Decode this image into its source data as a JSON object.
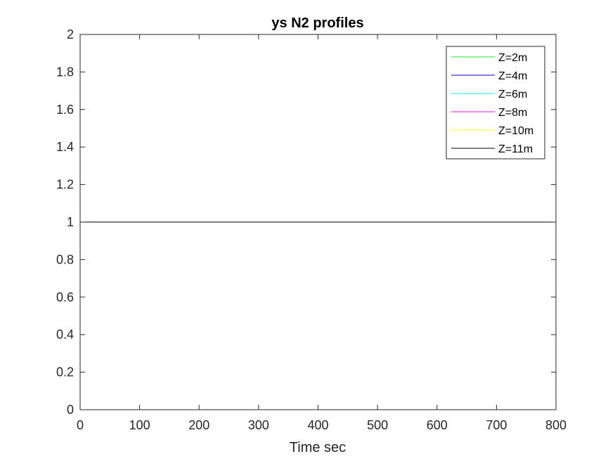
{
  "chart_data": {
    "type": "line",
    "title": "ys N2 profiles",
    "xlabel": "Time sec",
    "ylabel": "",
    "xlim": [
      0,
      800
    ],
    "ylim": [
      0,
      2
    ],
    "xticks": [
      0,
      100,
      200,
      300,
      400,
      500,
      600,
      700,
      800
    ],
    "yticks": [
      0,
      0.2,
      0.4,
      0.6,
      0.8,
      1,
      1.2,
      1.4,
      1.6,
      1.8,
      2
    ],
    "xtick_labels": [
      "0",
      "100",
      "200",
      "300",
      "400",
      "500",
      "600",
      "700",
      "800"
    ],
    "ytick_labels": [
      "0",
      "0.2",
      "0.4",
      "0.6",
      "0.8",
      "1",
      "1.2",
      "1.4",
      "1.6",
      "1.8",
      "2"
    ],
    "grid": false,
    "legend_position": "top-right",
    "series": [
      {
        "name": "Z=2m",
        "color": "#00ff00",
        "x": [
          0,
          800
        ],
        "y": [
          1,
          1
        ]
      },
      {
        "name": "Z=4m",
        "color": "#0000ff",
        "x": [
          0,
          800
        ],
        "y": [
          1,
          1
        ]
      },
      {
        "name": "Z=6m",
        "color": "#00ffff",
        "x": [
          0,
          800
        ],
        "y": [
          1,
          1
        ]
      },
      {
        "name": "Z=8m",
        "color": "#ff00ff",
        "x": [
          0,
          800
        ],
        "y": [
          1,
          1
        ]
      },
      {
        "name": "Z=10m",
        "color": "#ffff00",
        "x": [
          0,
          800
        ],
        "y": [
          1,
          1
        ]
      },
      {
        "name": "Z=11m",
        "color": "#000000",
        "x": [
          0,
          800
        ],
        "y": [
          1,
          1
        ]
      }
    ]
  }
}
